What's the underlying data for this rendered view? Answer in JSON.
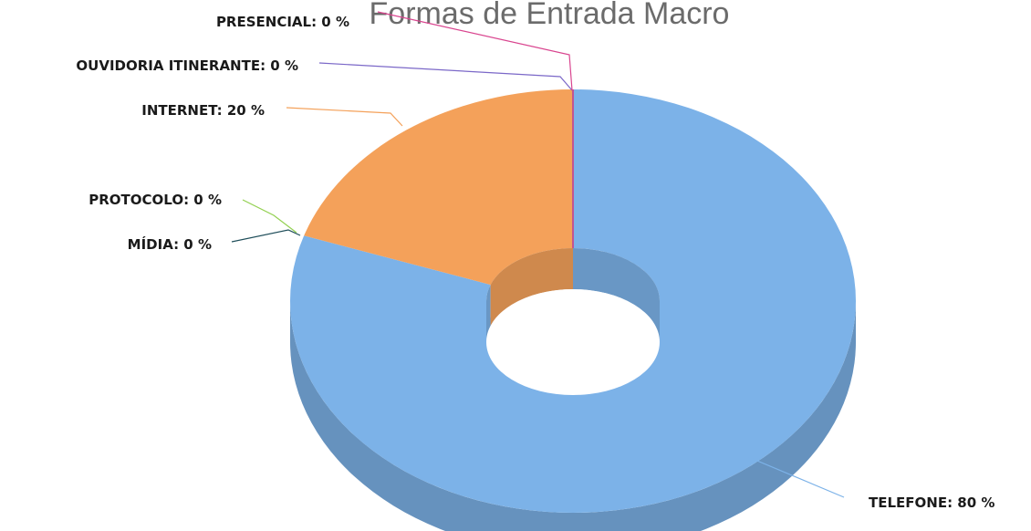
{
  "chart_data": {
    "type": "pie",
    "variant": "doughnut-3d",
    "title": "Formas de Entrada Macro",
    "categories": [
      "TELEFONE",
      "INTERNET",
      "MÍDIA",
      "PROTOCOLO",
      "OUVIDORIA ITINERANTE",
      "PRESENCIAL"
    ],
    "values": [
      80,
      20,
      0,
      0,
      0,
      0
    ],
    "unit": "%",
    "labels": [
      "TELEFONE: 80 %",
      "INTERNET: 20 %",
      "MÍDIA: 0 %",
      "PROTOCOLO: 0 %",
      "OUVIDORIA ITINERANTE: 0 %",
      "PRESENCIAL: 0 %"
    ],
    "colors": [
      "#7cb2e8",
      "#f4a15a",
      "#1f4e5a",
      "#92d050",
      "#7b68c8",
      "#d9458f"
    ],
    "legend": "none"
  }
}
